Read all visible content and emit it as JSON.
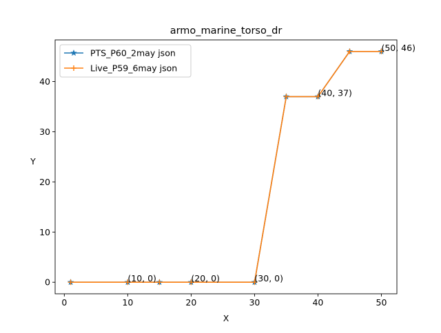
{
  "chart_data": {
    "type": "line",
    "title": "armo_marine_torso_dr",
    "xlabel": "X",
    "ylabel": "Y",
    "xlim": [
      -1.45,
      52.45
    ],
    "ylim": [
      -2.3,
      48.3
    ],
    "xticks": [
      0,
      10,
      20,
      30,
      40,
      50
    ],
    "yticks": [
      0,
      10,
      20,
      30,
      40
    ],
    "x": [
      1,
      10,
      15,
      20,
      30,
      35,
      40,
      45,
      50
    ],
    "series": [
      {
        "name": "PTS_P60_2may json",
        "color": "#1f77b4",
        "marker": "star",
        "values": [
          0,
          0,
          0,
          0,
          0,
          37,
          37,
          46,
          46
        ]
      },
      {
        "name": "Live_P59_6may json",
        "color": "#ff7f0e",
        "marker": "plus",
        "values": [
          0,
          0,
          0,
          0,
          0,
          37,
          37,
          46,
          46
        ]
      }
    ],
    "annotations": [
      {
        "x": 10,
        "y": 0,
        "text": "(10, 0)"
      },
      {
        "x": 20,
        "y": 0,
        "text": "(20, 0)"
      },
      {
        "x": 30,
        "y": 0,
        "text": "(30, 0)"
      },
      {
        "x": 40,
        "y": 37,
        "text": "(40, 37)"
      },
      {
        "x": 50,
        "y": 46,
        "text": "(50, 46)"
      }
    ],
    "legend_position": "upper-left",
    "grid": false
  }
}
